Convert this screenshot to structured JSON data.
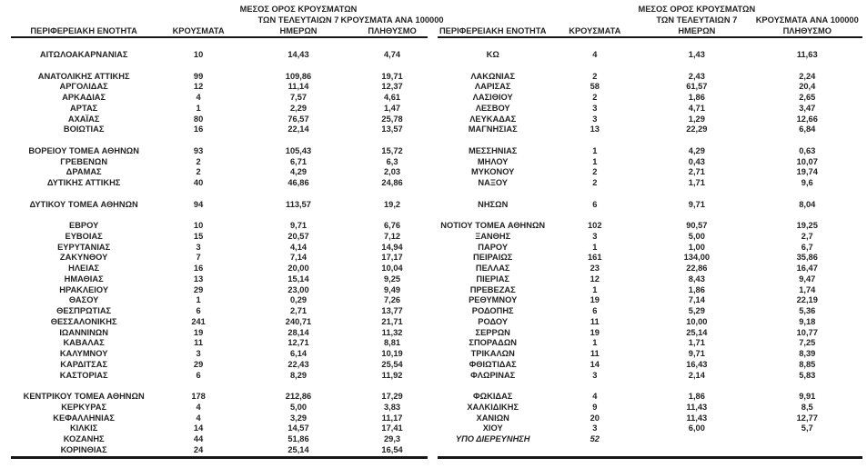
{
  "page": {
    "background_color": "#ffffff",
    "text_color": "#232323",
    "border_color": "#161616"
  },
  "table_header": {
    "col_region": "ΠΕΡΙΦΕΡΕΙΑΚΗ ΕΝΟΤΗΤΑ",
    "col_cases": "ΚΡΟΥΣΜΑΤΑ",
    "col_avg7_line1": "ΜΕΣΟΣ ΟΡΟΣ ΚΡΟΥΣΜΑΤΩΝ",
    "col_avg7_line2": "ΤΩΝ ΤΕΛΕΥΤΑΙΩΝ 7",
    "col_avg7_line3": "ΗΜΕΡΩΝ",
    "col_per100k_line1": "ΚΡΟΥΣΜΑΤΑ ΑΝΑ 100000",
    "col_per100k_line2": "ΠΛΗΘΥΣΜΟ"
  },
  "tables": {
    "columns": [
      "ΠΕΡΙΦΕΡΕΙΑΚΗ ΕΝΟΤΗΤΑ",
      "ΚΡΟΥΣΜΑΤΑ",
      "ΜΕΣΟΣ ΟΡΟΣ ΚΡΟΥΣΜΑΤΩΝ ΤΩΝ ΤΕΛΕΥΤΑΙΩΝ 7 ΗΜΕΡΩΝ",
      "ΚΡΟΥΣΜΑΤΑ ΑΝΑ 100000 ΠΛΗΘΥΣΜΟ"
    ],
    "left_rows": [
      [
        "ΑΙΤΩΛΟΑΚΑΡΝΑΝΙΑΣ",
        "10",
        "14,43",
        "4,74"
      ],
      [],
      [
        "ΑΝΑΤΟΛΙΚΗΣ ΑΤΤΙΚΗΣ",
        "99",
        "109,86",
        "19,71"
      ],
      [
        "ΑΡΓΟΛΙΔΑΣ",
        "12",
        "11,14",
        "12,37"
      ],
      [
        "ΑΡΚΑΔΙΑΣ",
        "4",
        "7,57",
        "4,61"
      ],
      [
        "ΑΡΤΑΣ",
        "1",
        "2,29",
        "1,47"
      ],
      [
        "ΑΧΑΪΑΣ",
        "80",
        "76,57",
        "25,78"
      ],
      [
        "ΒΟΙΩΤΙΑΣ",
        "16",
        "22,14",
        "13,57"
      ],
      [],
      [
        "ΒΟΡΕΙΟΥ ΤΟΜΕΑ ΑΘΗΝΩΝ",
        "93",
        "105,43",
        "15,72"
      ],
      [
        "ΓΡΕΒΕΝΩΝ",
        "2",
        "6,71",
        "6,3"
      ],
      [
        "ΔΡΑΜΑΣ",
        "2",
        "4,29",
        "2,03"
      ],
      [
        "ΔΥΤΙΚΗΣ ΑΤΤΙΚΗΣ",
        "40",
        "46,86",
        "24,86"
      ],
      [],
      [
        "ΔΥΤΙΚΟΥ ΤΟΜΕΑ ΑΘΗΝΩΝ",
        "94",
        "113,57",
        "19,2"
      ],
      [],
      [
        "ΕΒΡΟΥ",
        "10",
        "9,71",
        "6,76"
      ],
      [
        "ΕΥΒΟΙΑΣ",
        "15",
        "20,57",
        "7,12"
      ],
      [
        "ΕΥΡΥΤΑΝΙΑΣ",
        "3",
        "4,14",
        "14,94"
      ],
      [
        "ΖΑΚΥΝΘΟΥ",
        "7",
        "7,14",
        "17,17"
      ],
      [
        "ΗΛΕΙΑΣ",
        "16",
        "20,00",
        "10,04"
      ],
      [
        "ΗΜΑΘΙΑΣ",
        "13",
        "15,14",
        "9,25"
      ],
      [
        "ΗΡΑΚΛΕΙΟΥ",
        "29",
        "23,00",
        "9,49"
      ],
      [
        "ΘΑΣΟΥ",
        "1",
        "0,29",
        "7,26"
      ],
      [
        "ΘΕΣΠΡΩΤΙΑΣ",
        "6",
        "2,71",
        "13,77"
      ],
      [
        "ΘΕΣΣΑΛΟΝΙΚΗΣ",
        "241",
        "240,71",
        "21,71"
      ],
      [
        "ΙΩΑΝΝΙΝΩΝ",
        "19",
        "28,14",
        "11,32"
      ],
      [
        "ΚΑΒΑΛΑΣ",
        "11",
        "12,71",
        "8,81"
      ],
      [
        "ΚΑΛΥΜΝΟΥ",
        "3",
        "6,14",
        "10,19"
      ],
      [
        "ΚΑΡΔΙΤΣΑΣ",
        "29",
        "22,43",
        "25,54"
      ],
      [
        "ΚΑΣΤΟΡΙΑΣ",
        "6",
        "8,29",
        "11,92"
      ],
      [],
      [
        "ΚΕΝΤΡΙΚΟΥ ΤΟΜΕΑ ΑΘΗΝΩΝ",
        "178",
        "212,86",
        "17,29"
      ],
      [
        "ΚΕΡΚΥΡΑΣ",
        "4",
        "5,00",
        "3,83"
      ],
      [
        "ΚΕΦΑΛΛΗΝΙΑΣ",
        "4",
        "3,29",
        "11,17"
      ],
      [
        "ΚΙΛΚΙΣ",
        "14",
        "14,57",
        "17,41"
      ],
      [
        "ΚΟΖΑΝΗΣ",
        "44",
        "51,86",
        "29,3"
      ],
      [
        "ΚΟΡΙΝΘΙΑΣ",
        "24",
        "25,14",
        "16,54"
      ]
    ],
    "right_rows": [
      [
        "ΚΩ",
        "4",
        "1,43",
        "11,63"
      ],
      [],
      [
        "ΛΑΚΩΝΙΑΣ",
        "2",
        "2,43",
        "2,24"
      ],
      [
        "ΛΑΡΙΣΑΣ",
        "58",
        "61,57",
        "20,4"
      ],
      [
        "ΛΑΣΙΘΙΟΥ",
        "2",
        "1,86",
        "2,65"
      ],
      [
        "ΛΕΣΒΟΥ",
        "3",
        "4,71",
        "3,47"
      ],
      [
        "ΛΕΥΚΑΔΑΣ",
        "3",
        "1,29",
        "12,66"
      ],
      [
        "ΜΑΓΝΗΣΙΑΣ",
        "13",
        "22,29",
        "6,84"
      ],
      [],
      [
        "ΜΕΣΣΗΝΙΑΣ",
        "1",
        "4,29",
        "0,63"
      ],
      [
        "ΜΗΛΟΥ",
        "1",
        "0,43",
        "10,07"
      ],
      [
        "ΜΥΚΟΝΟΥ",
        "2",
        "2,71",
        "19,74"
      ],
      [
        "ΝΑΞΟΥ",
        "2",
        "1,71",
        "9,6"
      ],
      [],
      [
        "ΝΗΣΩΝ",
        "6",
        "9,71",
        "8,04"
      ],
      [],
      [
        "ΝΟΤΙΟΥ ΤΟΜΕΑ ΑΘΗΝΩΝ",
        "102",
        "90,57",
        "19,25"
      ],
      [
        "ΞΑΝΘΗΣ",
        "3",
        "5,00",
        "2,7"
      ],
      [
        "ΠΑΡΟΥ",
        "1",
        "1,00",
        "6,7"
      ],
      [
        "ΠΕΙΡΑΙΩΣ",
        "161",
        "134,00",
        "35,86"
      ],
      [
        "ΠΕΛΛΑΣ",
        "23",
        "22,86",
        "16,47"
      ],
      [
        "ΠΙΕΡΙΑΣ",
        "12",
        "8,43",
        "9,47"
      ],
      [
        "ΠΡΕΒΕΖΑΣ",
        "1",
        "1,86",
        "1,74"
      ],
      [
        "ΡΕΘΥΜΝΟΥ",
        "19",
        "7,14",
        "22,19"
      ],
      [
        "ΡΟΔΟΠΗΣ",
        "6",
        "5,29",
        "5,36"
      ],
      [
        "ΡΟΔΟΥ",
        "11",
        "10,00",
        "9,18"
      ],
      [
        "ΣΕΡΡΩΝ",
        "19",
        "25,14",
        "10,77"
      ],
      [
        "ΣΠΟΡΑΔΩΝ",
        "1",
        "1,71",
        "7,25"
      ],
      [
        "ΤΡΙΚΑΛΩΝ",
        "11",
        "9,71",
        "8,39"
      ],
      [
        "ΦΘΙΩΤΙΔΑΣ",
        "14",
        "16,43",
        "8,85"
      ],
      [
        "ΦΛΩΡΙΝΑΣ",
        "3",
        "2,14",
        "5,83"
      ],
      [],
      [
        "ΦΩΚΙΔΑΣ",
        "4",
        "1,86",
        "9,91"
      ],
      [
        "ΧΑΛΚΙΔΙΚΗΣ",
        "9",
        "11,43",
        "8,5"
      ],
      [
        "ΧΑΝΙΩΝ",
        "20",
        "11,43",
        "12,77"
      ],
      [
        "ΧΙΟΥ",
        "3",
        "6,00",
        "5,7"
      ],
      {
        "cells": [
          "ΥΠΟ ΔΙΕΡΕΥΝΗΣΗ",
          "52",
          "",
          ""
        ],
        "italic": true
      },
      []
    ]
  }
}
